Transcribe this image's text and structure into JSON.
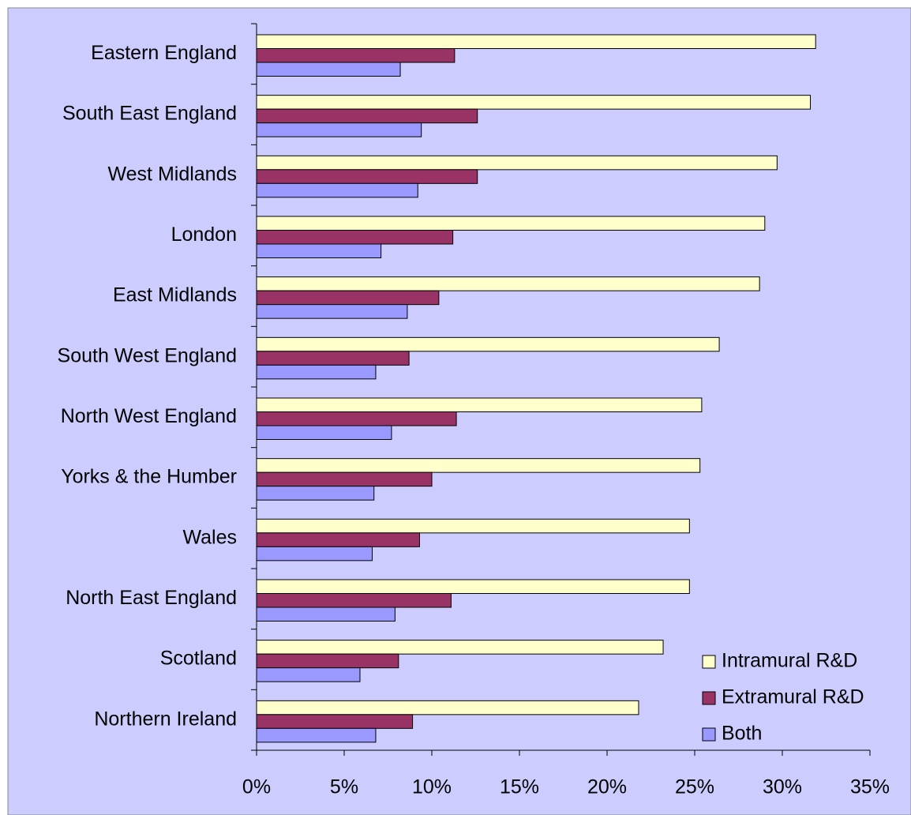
{
  "chart_data": {
    "type": "barh",
    "categories": [
      "Eastern England",
      "South East England",
      "West Midlands",
      "London",
      "East Midlands",
      "South West England",
      "North West England",
      "Yorks & the Humber",
      "Wales",
      "North East England",
      "Scotland",
      "Northern Ireland"
    ],
    "series": [
      {
        "name": "Intramural R&D",
        "color": "#ffffcc",
        "values": [
          31.9,
          31.6,
          29.7,
          29.0,
          28.7,
          26.4,
          25.4,
          25.3,
          24.7,
          24.7,
          23.2,
          21.8
        ]
      },
      {
        "name": "Extramural R&D",
        "color": "#993366",
        "values": [
          11.3,
          12.6,
          12.6,
          11.2,
          10.4,
          8.7,
          11.4,
          10.0,
          9.3,
          11.1,
          8.1,
          8.9
        ]
      },
      {
        "name": "Both",
        "color": "#9999ff",
        "values": [
          8.2,
          9.4,
          9.2,
          7.1,
          8.6,
          6.8,
          7.7,
          6.7,
          6.6,
          7.9,
          5.9,
          6.8
        ]
      }
    ],
    "xlim": [
      0,
      35
    ],
    "xticks": [
      {
        "value": 0,
        "label": "0%"
      },
      {
        "value": 5,
        "label": "5%"
      },
      {
        "value": 10,
        "label": "10%"
      },
      {
        "value": 15,
        "label": "15%"
      },
      {
        "value": 20,
        "label": "20%"
      },
      {
        "value": 25,
        "label": "25%"
      },
      {
        "value": 30,
        "label": "30%"
      },
      {
        "value": 35,
        "label": "35%"
      }
    ],
    "legend": "lower right",
    "background": "#ccccff"
  }
}
